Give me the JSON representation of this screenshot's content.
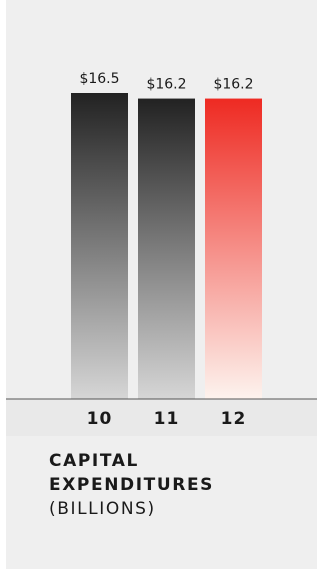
{
  "chart_data": {
    "type": "bar",
    "categories": [
      "10",
      "11",
      "12"
    ],
    "values": [
      16.5,
      16.2,
      16.2
    ],
    "value_labels": [
      "$16.5",
      "$16.2",
      "$16.2"
    ],
    "title_lines": [
      "CAPITAL",
      "EXPENDITURES"
    ],
    "unit_label": "(BILLIONS)",
    "ylim": [
      0,
      16.5
    ],
    "grid": false,
    "legend": "none",
    "bar_colors": [
      {
        "top": "#222222",
        "bottom": "#d6d6d6"
      },
      {
        "top": "#222222",
        "bottom": "#d6d6d6"
      },
      {
        "top": "#ee2a22",
        "bottom": "#fdf3ee"
      }
    ]
  },
  "colors": {
    "panel_bg": "#efefef",
    "axis_band_bg": "#e9e9e9",
    "axis_line": "#555555",
    "text": "#1a1a1a"
  }
}
